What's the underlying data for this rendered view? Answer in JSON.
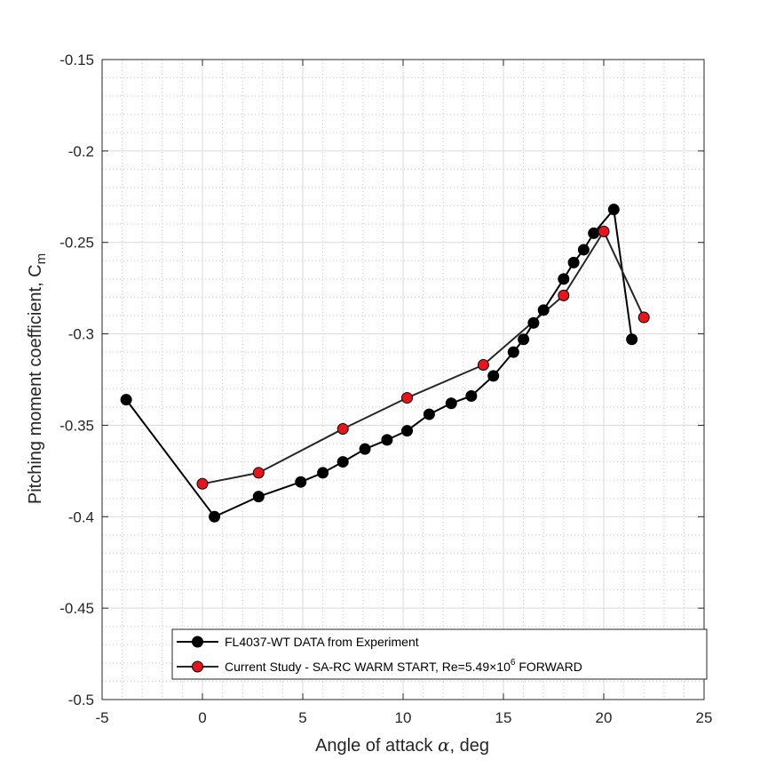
{
  "chart_data": {
    "type": "line",
    "title": "",
    "xlabel_prefix": "Angle of attack ",
    "xlabel_symbol": "α",
    "xlabel_suffix": ", deg",
    "ylabel": "Pitching moment coefficient, C",
    "ylabel_sub": "m",
    "xlim": [
      -5,
      25
    ],
    "ylim": [
      -0.5,
      -0.15
    ],
    "xticks": [
      -5,
      0,
      5,
      10,
      15,
      20,
      25
    ],
    "xtick_labels": [
      "-5",
      "0",
      "5",
      "10",
      "15",
      "20",
      "25"
    ],
    "yticks": [
      -0.5,
      -0.45,
      -0.4,
      -0.35,
      -0.3,
      -0.25,
      -0.2,
      -0.15
    ],
    "ytick_labels": [
      "-0.5",
      "-0.45",
      "-0.4",
      "-0.35",
      "-0.3",
      "-0.25",
      "-0.2",
      "-0.15"
    ],
    "grid": true,
    "minor_grid": true,
    "legend_position": "bottom-right",
    "series": [
      {
        "name": "FL4037-WT DATA from Experiment",
        "line_color": "#000000",
        "marker_color": "#000000",
        "x": [
          -3.8,
          0.6,
          2.8,
          4.9,
          6.0,
          7.0,
          8.1,
          9.2,
          10.2,
          11.3,
          12.4,
          13.4,
          14.5,
          15.5,
          16.0,
          16.5,
          17.0,
          18.0,
          18.5,
          19.0,
          19.5,
          20.5,
          21.4
        ],
        "y": [
          -0.336,
          -0.4,
          -0.389,
          -0.381,
          -0.376,
          -0.37,
          -0.363,
          -0.358,
          -0.353,
          -0.344,
          -0.338,
          -0.334,
          -0.323,
          -0.31,
          -0.303,
          -0.294,
          -0.287,
          -0.27,
          -0.261,
          -0.254,
          -0.245,
          -0.232,
          -0.303
        ]
      },
      {
        "name_prefix": "Current Study - SA-RC WARM START, Re=5.49",
        "name_times": "×",
        "name_base": "10",
        "name_exp": "6",
        "name_suffix": " FORWARD",
        "line_color": "#262626",
        "marker_color": "#e8141b",
        "x": [
          0.0,
          2.8,
          7.0,
          10.2,
          14.0,
          18.0,
          20.0,
          22.0
        ],
        "y": [
          -0.382,
          -0.376,
          -0.352,
          -0.335,
          -0.317,
          -0.279,
          -0.244,
          -0.291
        ]
      }
    ]
  }
}
